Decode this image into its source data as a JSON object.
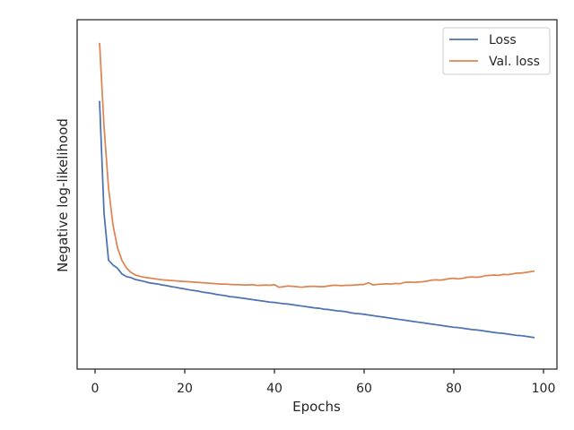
{
  "chart_data": {
    "type": "line",
    "xlabel": "Epochs",
    "ylabel": "Negative log-likelihood",
    "xlim": [
      -4,
      103
    ],
    "ylim": [
      0,
      1
    ],
    "xticks": [
      0,
      20,
      40,
      60,
      80,
      100
    ],
    "yticks_shown": false,
    "grid": false,
    "legend_position": "top-right",
    "series": [
      {
        "name": "Loss",
        "color": "#4c72b0",
        "x": [
          1,
          2,
          3,
          4,
          5,
          6,
          7,
          8,
          9,
          10,
          11,
          12,
          13,
          14,
          15,
          16,
          17,
          18,
          19,
          20,
          21,
          22,
          23,
          24,
          25,
          26,
          27,
          28,
          29,
          30,
          31,
          32,
          33,
          34,
          35,
          36,
          37,
          38,
          39,
          40,
          41,
          42,
          43,
          44,
          45,
          46,
          47,
          48,
          49,
          50,
          51,
          52,
          53,
          54,
          55,
          56,
          57,
          58,
          59,
          60,
          61,
          62,
          63,
          64,
          65,
          66,
          67,
          68,
          69,
          70,
          71,
          72,
          73,
          74,
          75,
          76,
          77,
          78,
          79,
          80,
          81,
          82,
          83,
          84,
          85,
          86,
          87,
          88,
          89,
          90,
          91,
          92,
          93,
          94,
          95,
          96,
          97,
          98
        ],
        "y": [
          0.79,
          0.442,
          0.296,
          0.281,
          0.271,
          0.253,
          0.245,
          0.242,
          0.236,
          0.233,
          0.23,
          0.226,
          0.224,
          0.222,
          0.219,
          0.217,
          0.214,
          0.212,
          0.209,
          0.207,
          0.204,
          0.202,
          0.2,
          0.197,
          0.195,
          0.193,
          0.19,
          0.188,
          0.186,
          0.183,
          0.182,
          0.18,
          0.178,
          0.176,
          0.174,
          0.172,
          0.17,
          0.168,
          0.166,
          0.165,
          0.163,
          0.161,
          0.16,
          0.158,
          0.156,
          0.154,
          0.152,
          0.15,
          0.148,
          0.147,
          0.144,
          0.143,
          0.141,
          0.139,
          0.138,
          0.136,
          0.133,
          0.131,
          0.13,
          0.128,
          0.126,
          0.124,
          0.122,
          0.12,
          0.118,
          0.116,
          0.114,
          0.112,
          0.11,
          0.108,
          0.106,
          0.104,
          0.102,
          0.1,
          0.098,
          0.096,
          0.094,
          0.092,
          0.09,
          0.088,
          0.087,
          0.085,
          0.083,
          0.081,
          0.08,
          0.078,
          0.076,
          0.074,
          0.072,
          0.07,
          0.069,
          0.067,
          0.065,
          0.063,
          0.062,
          0.06,
          0.058,
          0.056
        ]
      },
      {
        "name": "Val. loss",
        "color": "#dd8452",
        "x": [
          1,
          2,
          3,
          4,
          5,
          6,
          7,
          8,
          9,
          10,
          11,
          12,
          13,
          14,
          15,
          16,
          17,
          18,
          19,
          20,
          21,
          22,
          23,
          24,
          25,
          26,
          27,
          28,
          29,
          30,
          31,
          32,
          33,
          34,
          35,
          36,
          37,
          38,
          39,
          40,
          41,
          42,
          43,
          44,
          45,
          46,
          47,
          48,
          49,
          50,
          51,
          52,
          53,
          54,
          55,
          56,
          57,
          58,
          59,
          60,
          61,
          62,
          63,
          64,
          65,
          66,
          67,
          68,
          69,
          70,
          71,
          72,
          73,
          74,
          75,
          76,
          77,
          78,
          79,
          80,
          81,
          82,
          83,
          84,
          85,
          86,
          87,
          88,
          89,
          90,
          91,
          92,
          93,
          94,
          95,
          96,
          97,
          98
        ],
        "y": [
          0.97,
          0.71,
          0.52,
          0.405,
          0.335,
          0.295,
          0.272,
          0.258,
          0.25,
          0.246,
          0.243,
          0.241,
          0.239,
          0.237,
          0.235,
          0.234,
          0.233,
          0.232,
          0.231,
          0.23,
          0.229,
          0.228,
          0.227,
          0.226,
          0.225,
          0.224,
          0.223,
          0.222,
          0.222,
          0.221,
          0.22,
          0.22,
          0.219,
          0.219,
          0.22,
          0.218,
          0.218,
          0.219,
          0.218,
          0.22,
          0.212,
          0.214,
          0.216,
          0.215,
          0.214,
          0.212,
          0.214,
          0.215,
          0.215,
          0.214,
          0.214,
          0.216,
          0.218,
          0.218,
          0.217,
          0.218,
          0.218,
          0.219,
          0.22,
          0.221,
          0.226,
          0.219,
          0.221,
          0.222,
          0.223,
          0.222,
          0.224,
          0.223,
          0.227,
          0.228,
          0.227,
          0.228,
          0.229,
          0.231,
          0.234,
          0.235,
          0.234,
          0.236,
          0.239,
          0.24,
          0.238,
          0.24,
          0.243,
          0.244,
          0.243,
          0.244,
          0.248,
          0.249,
          0.25,
          0.249,
          0.252,
          0.251,
          0.253,
          0.256,
          0.256,
          0.258,
          0.26,
          0.262
        ]
      }
    ]
  }
}
